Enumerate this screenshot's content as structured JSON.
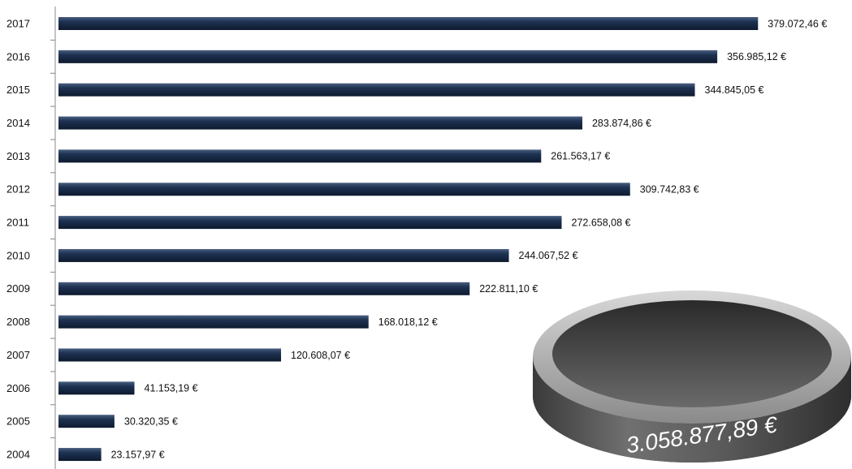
{
  "chart_data": {
    "type": "bar",
    "orientation": "horizontal",
    "categories": [
      "2017",
      "2016",
      "2015",
      "2014",
      "2013",
      "2012",
      "2011",
      "2010",
      "2009",
      "2008",
      "2007",
      "2006",
      "2005",
      "2004"
    ],
    "values": [
      379072.46,
      356985.12,
      344845.05,
      283874.86,
      261563.17,
      309742.83,
      272658.08,
      244067.52,
      222811.1,
      168018.12,
      120608.07,
      41153.19,
      30320.35,
      23157.97
    ],
    "value_labels": [
      "379.072,46 €",
      "356.985,12 €",
      "344.845,05 €",
      "283.874,86 €",
      "261.563,17 €",
      "309.742,83 €",
      "272.658,08 €",
      "244.067,52 €",
      "222.811,10 €",
      "168.018,12 €",
      "120.608,07 €",
      "41.153,19 €",
      "30.320,35 €",
      "23.157,97 €"
    ],
    "color": "#1e3252",
    "xlim": [
      0,
      430000
    ],
    "annotation": "3.058.877,89 €"
  }
}
